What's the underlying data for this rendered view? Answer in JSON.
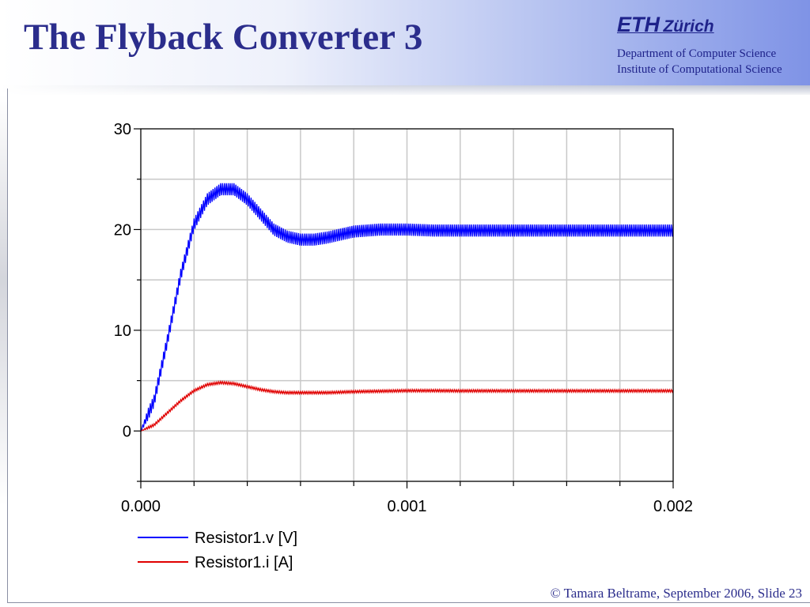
{
  "slide": {
    "title": "The Flyback Converter 3",
    "logo": {
      "text_main": "ETH",
      "text_city": "Zürich"
    },
    "department": "Department of Computer Science",
    "institute": "Institute of Computational Science",
    "footer": "© Tamara Beltrame, September 2006, Slide 23"
  },
  "chart_data": {
    "type": "line",
    "xlim": [
      0,
      0.002
    ],
    "ylim": [
      -5,
      30
    ],
    "x_ticks": [
      0.0,
      0.001,
      0.002
    ],
    "x_tick_labels": [
      "0.000",
      "0.001",
      "0.002"
    ],
    "x_minor_ticks": [
      0.0002,
      0.0004,
      0.0006,
      0.0008,
      0.0012,
      0.0014,
      0.0016,
      0.0018
    ],
    "y_ticks": [
      0,
      10,
      20,
      30
    ],
    "y_tick_labels": [
      "0",
      "10",
      "20",
      "30"
    ],
    "y_minor_ticks": [
      -5,
      5,
      15,
      25
    ],
    "grid": true,
    "legend_position": "bottom-left",
    "series": [
      {
        "name": "Resistor1.v [V]",
        "color": "#0000ff",
        "x": [
          0,
          5e-05,
          0.0001,
          0.00015,
          0.0002,
          0.00025,
          0.0003,
          0.00035,
          0.0004,
          0.00045,
          0.0005,
          0.00055,
          0.0006,
          0.00065,
          0.0007,
          0.00075,
          0.0008,
          0.0009,
          0.001,
          0.0011,
          0.0012,
          0.0013,
          0.0014,
          0.0015,
          0.0016,
          0.0017,
          0.0018,
          0.0019,
          0.002
        ],
        "y": [
          0,
          3,
          9,
          15.5,
          20.5,
          23,
          24,
          24,
          23,
          21.5,
          20,
          19.3,
          19,
          19,
          19.2,
          19.5,
          19.8,
          20,
          20,
          19.9,
          19.9,
          19.9,
          19.9,
          19.9,
          19.9,
          19.9,
          19.9,
          19.9,
          19.9
        ],
        "ripple": 0.6
      },
      {
        "name": "Resistor1.i [A]",
        "color": "#e00000",
        "x": [
          0,
          5e-05,
          0.0001,
          0.00015,
          0.0002,
          0.00025,
          0.0003,
          0.00035,
          0.0004,
          0.00045,
          0.0005,
          0.00055,
          0.0006,
          0.00065,
          0.0007,
          0.00075,
          0.0008,
          0.0009,
          0.001,
          0.0011,
          0.0012,
          0.0013,
          0.0014,
          0.0015,
          0.0016,
          0.0017,
          0.0018,
          0.0019,
          0.002
        ],
        "y": [
          0,
          0.6,
          1.8,
          3,
          4,
          4.6,
          4.8,
          4.7,
          4.4,
          4.1,
          3.9,
          3.8,
          3.8,
          3.8,
          3.8,
          3.85,
          3.9,
          3.95,
          4,
          4,
          3.98,
          3.98,
          3.98,
          3.98,
          3.98,
          3.98,
          3.98,
          3.98,
          3.98
        ],
        "ripple": 0.12
      }
    ]
  }
}
